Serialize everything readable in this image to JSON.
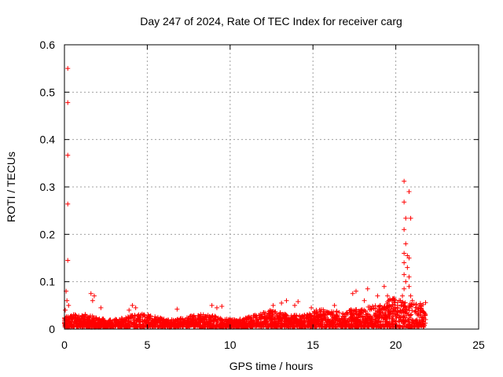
{
  "chart_data": {
    "type": "scatter",
    "title": "Day 247 of 2024, Rate Of TEC Index for receiver carg",
    "xlabel": "GPS time / hours",
    "ylabel": "ROTI / TECUs",
    "xlim": [
      0,
      25
    ],
    "ylim": [
      0,
      0.6
    ],
    "xticks": [
      0,
      5,
      10,
      15,
      20,
      25
    ],
    "yticks": [
      0,
      0.1,
      0.2,
      0.3,
      0.4,
      0.5,
      0.6
    ],
    "xtick_labels": [
      "0",
      "5",
      "10",
      "15",
      "20",
      "25"
    ],
    "ytick_labels": [
      "0",
      "0.1",
      "0.2",
      "0.3",
      "0.4",
      "0.5",
      "0.6"
    ],
    "grid": true,
    "marker": "+",
    "color": "#ff0000",
    "series": [
      {
        "name": "ROTI",
        "points": [
          [
            0.2,
            0.55
          ],
          [
            0.2,
            0.478
          ],
          [
            0.2,
            0.367
          ],
          [
            0.2,
            0.264
          ],
          [
            0.2,
            0.145
          ],
          [
            0.1,
            0.08
          ],
          [
            0.15,
            0.06
          ],
          [
            0.05,
            0.04
          ],
          [
            0.25,
            0.05
          ],
          [
            1.6,
            0.075
          ],
          [
            1.8,
            0.07
          ],
          [
            1.7,
            0.06
          ],
          [
            2.2,
            0.045
          ],
          [
            4.1,
            0.05
          ],
          [
            4.3,
            0.045
          ],
          [
            3.9,
            0.04
          ],
          [
            6.8,
            0.042
          ],
          [
            8.9,
            0.05
          ],
          [
            9.2,
            0.045
          ],
          [
            9.5,
            0.048
          ],
          [
            12.6,
            0.05
          ],
          [
            13.1,
            0.055
          ],
          [
            13.4,
            0.06
          ],
          [
            13.9,
            0.05
          ],
          [
            14.1,
            0.058
          ],
          [
            14.9,
            0.045
          ],
          [
            15.2,
            0.04
          ],
          [
            16.3,
            0.05
          ],
          [
            17.4,
            0.075
          ],
          [
            17.6,
            0.08
          ],
          [
            18.3,
            0.085
          ],
          [
            18.1,
            0.06
          ],
          [
            18.9,
            0.07
          ],
          [
            19.3,
            0.09
          ],
          [
            19.5,
            0.07
          ],
          [
            19.9,
            0.065
          ],
          [
            20.1,
            0.05
          ],
          [
            20.5,
            0.312
          ],
          [
            20.8,
            0.29
          ],
          [
            20.5,
            0.268
          ],
          [
            20.6,
            0.234
          ],
          [
            20.9,
            0.234
          ],
          [
            20.5,
            0.21
          ],
          [
            20.6,
            0.18
          ],
          [
            20.5,
            0.16
          ],
          [
            20.7,
            0.155
          ],
          [
            20.8,
            0.15
          ],
          [
            20.5,
            0.14
          ],
          [
            20.7,
            0.13
          ],
          [
            20.5,
            0.115
          ],
          [
            20.8,
            0.11
          ],
          [
            20.6,
            0.1
          ],
          [
            20.8,
            0.09
          ],
          [
            20.5,
            0.085
          ],
          [
            20.4,
            0.07
          ],
          [
            20.9,
            0.07
          ],
          [
            21.0,
            0.06
          ],
          [
            21.2,
            0.045
          ],
          [
            21.5,
            0.035
          ],
          [
            21.8,
            0.02
          ]
        ]
      }
    ]
  }
}
